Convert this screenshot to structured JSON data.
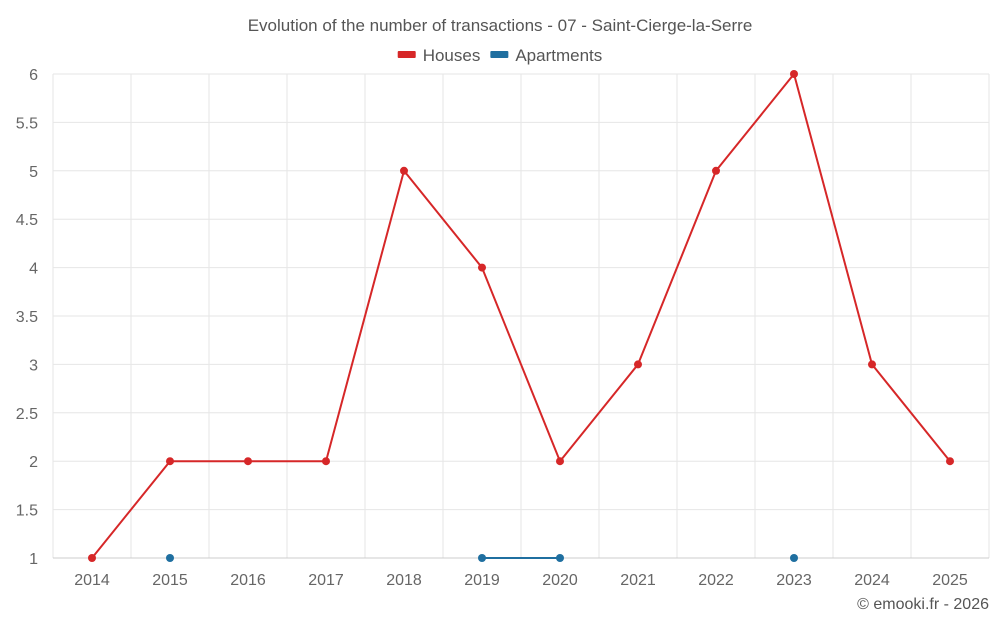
{
  "chart_data": {
    "type": "line",
    "title": "Evolution of the number of transactions - 07 - Saint-Cierge-la-Serre",
    "xlabel": "",
    "ylabel": "",
    "x": [
      2014,
      2015,
      2016,
      2017,
      2018,
      2019,
      2020,
      2021,
      2022,
      2023,
      2024,
      2025
    ],
    "x_tick_labels": [
      "2014",
      "2015",
      "2016",
      "2017",
      "2018",
      "2019",
      "2020",
      "2021",
      "2022",
      "2023",
      "2024",
      "2025"
    ],
    "ylim": [
      1,
      6
    ],
    "y_ticks": [
      1,
      1.5,
      2,
      2.5,
      3,
      3.5,
      4,
      4.5,
      5,
      5.5,
      6
    ],
    "y_tick_labels": [
      "1",
      "1.5",
      "2",
      "2.5",
      "3",
      "3.5",
      "4",
      "4.5",
      "5",
      "5.5",
      "6"
    ],
    "grid": true,
    "legend_position": "top-center",
    "series": [
      {
        "name": "Houses",
        "color": "#d62728",
        "values": [
          1,
          2,
          2,
          2,
          5,
          4,
          2,
          3,
          5,
          6,
          3,
          2
        ]
      },
      {
        "name": "Apartments",
        "color": "#1f6fa0",
        "values": [
          null,
          1,
          null,
          null,
          null,
          1,
          1,
          null,
          null,
          1,
          null,
          null
        ]
      }
    ]
  },
  "credit": "© emooki.fr - 2026"
}
